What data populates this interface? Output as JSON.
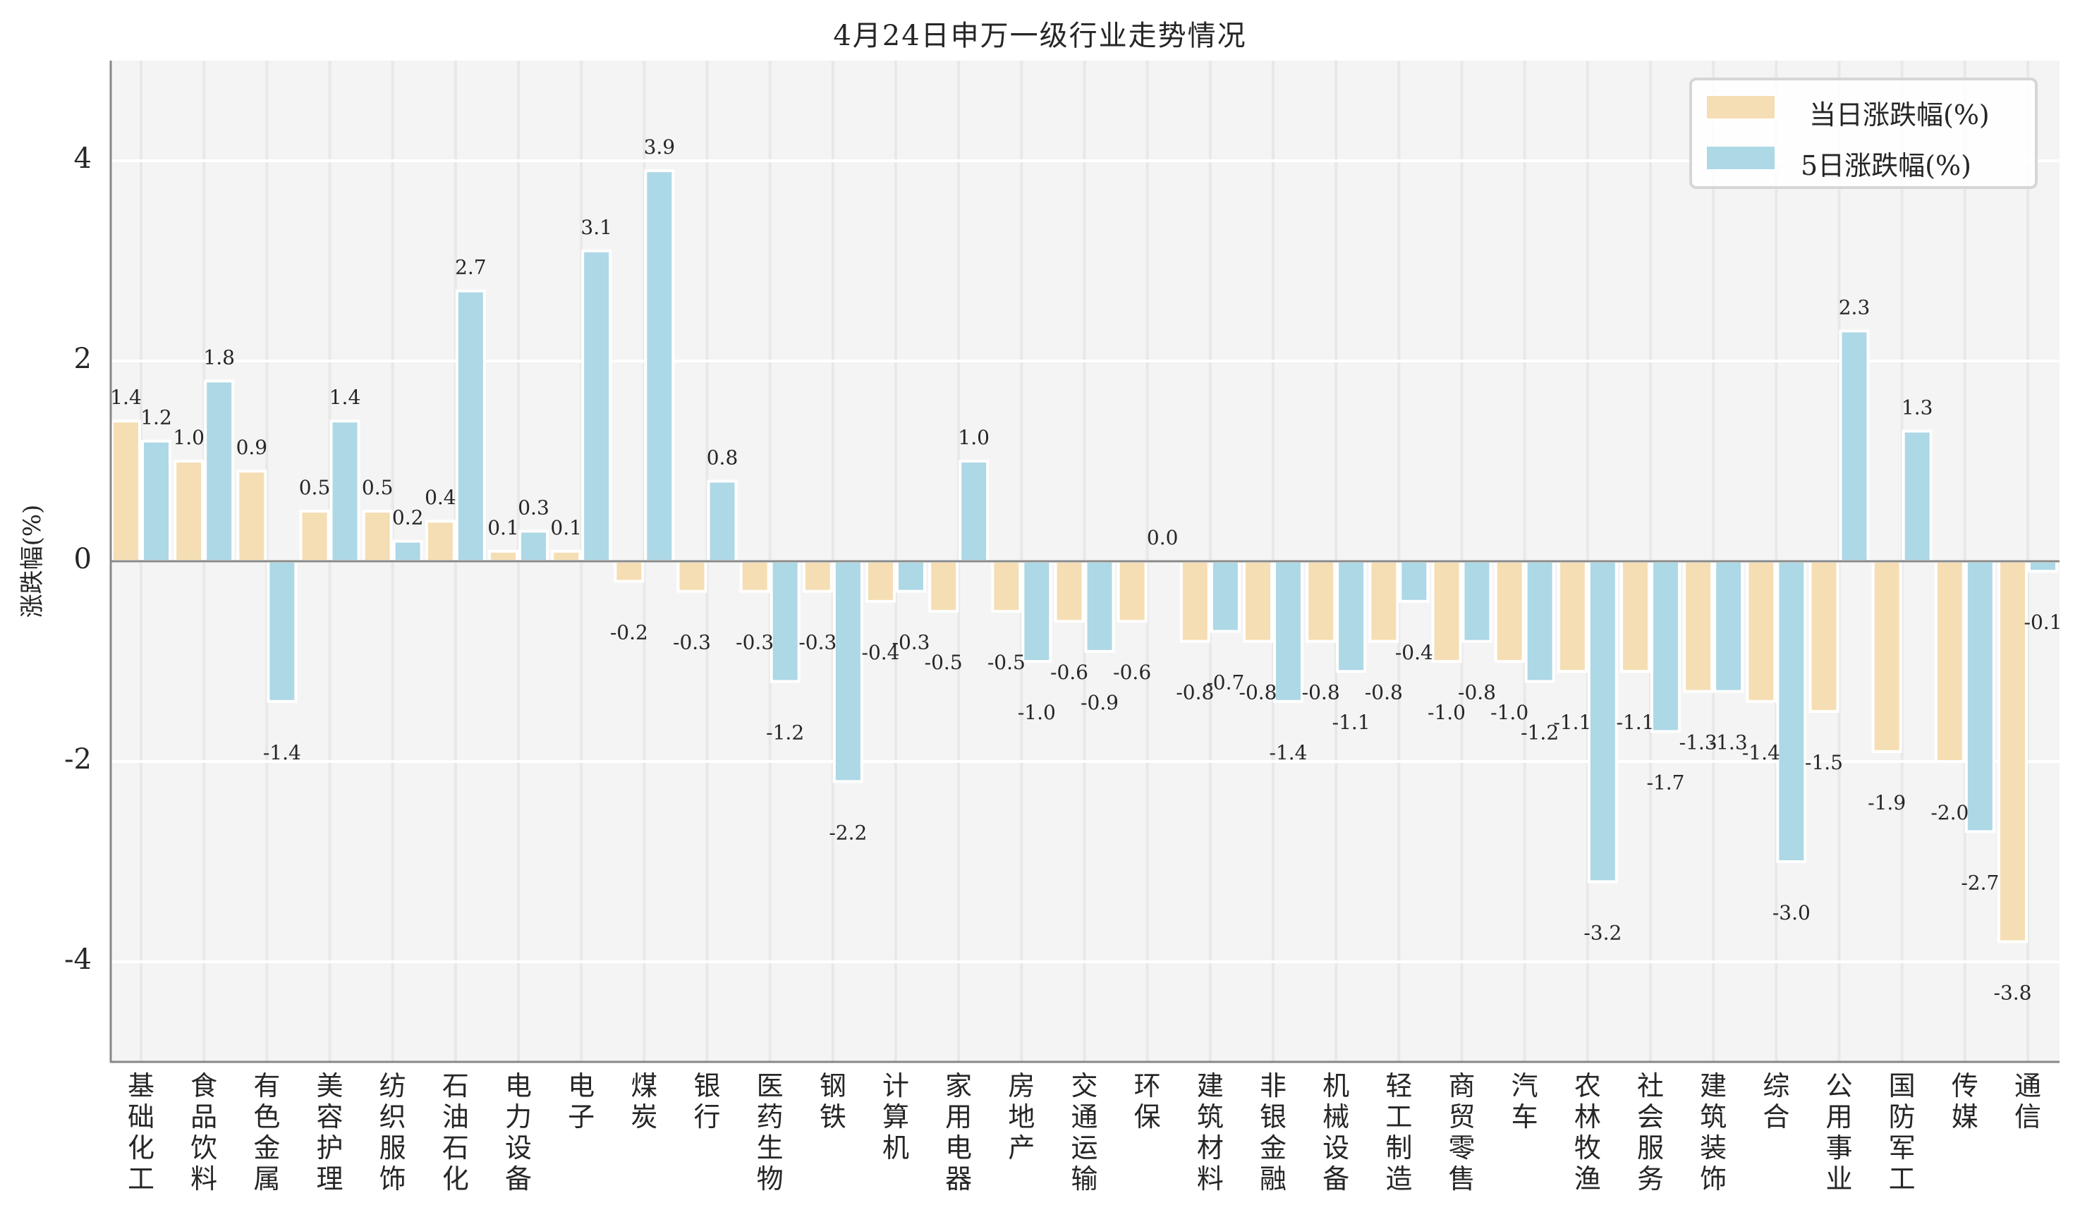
{
  "chart_data": {
    "type": "bar",
    "title": "4月24日申万一级行业走势情况",
    "xlabel": "",
    "ylabel": "涨跌幅(%)",
    "ylim": [
      -5,
      5
    ],
    "yticks": [
      -4,
      -2,
      0,
      2,
      4
    ],
    "grid": true,
    "legend_position": "top-right",
    "categories": [
      "基础化工",
      "食品饮料",
      "有色金属",
      "美容护理",
      "纺织服饰",
      "石油石化",
      "电力设备",
      "电子",
      "煤炭",
      "银行",
      "医药生物",
      "钢铁",
      "计算机",
      "家用电器",
      "房地产",
      "交通运输",
      "环保",
      "建筑材料",
      "非银金融",
      "机械设备",
      "轻工制造",
      "商贸零售",
      "汽车",
      "农林牧渔",
      "社会服务",
      "建筑装饰",
      "综合",
      "公用事业",
      "国防军工",
      "传媒",
      "通信"
    ],
    "series": [
      {
        "name": "当日涨跌幅(%)",
        "color": "#F5DEB3",
        "values": [
          1.4,
          1.0,
          0.9,
          0.5,
          0.5,
          0.4,
          0.1,
          0.1,
          -0.2,
          -0.3,
          -0.3,
          -0.3,
          -0.4,
          -0.5,
          -0.5,
          -0.6,
          -0.6,
          -0.8,
          -0.8,
          -0.8,
          -0.8,
          -1.0,
          -1.0,
          -1.1,
          -1.1,
          -1.3,
          -1.4,
          -1.5,
          -1.9,
          -2.0,
          -3.8
        ]
      },
      {
        "name": "5日涨跌幅(%)",
        "color": "#ADD8E6",
        "values": [
          1.2,
          1.8,
          -1.4,
          1.4,
          0.2,
          2.7,
          0.3,
          3.1,
          3.9,
          0.8,
          -1.2,
          -2.2,
          -0.3,
          1.0,
          -1.0,
          -0.9,
          0.0,
          -0.7,
          -1.4,
          -1.1,
          -0.4,
          -0.8,
          -1.2,
          -3.2,
          -1.7,
          -1.3,
          -3.0,
          2.3,
          1.3,
          -2.7,
          -0.1
        ]
      }
    ]
  },
  "legend": {
    "items": [
      "当日涨跌幅(%)",
      "5日涨跌幅(%)"
    ]
  }
}
